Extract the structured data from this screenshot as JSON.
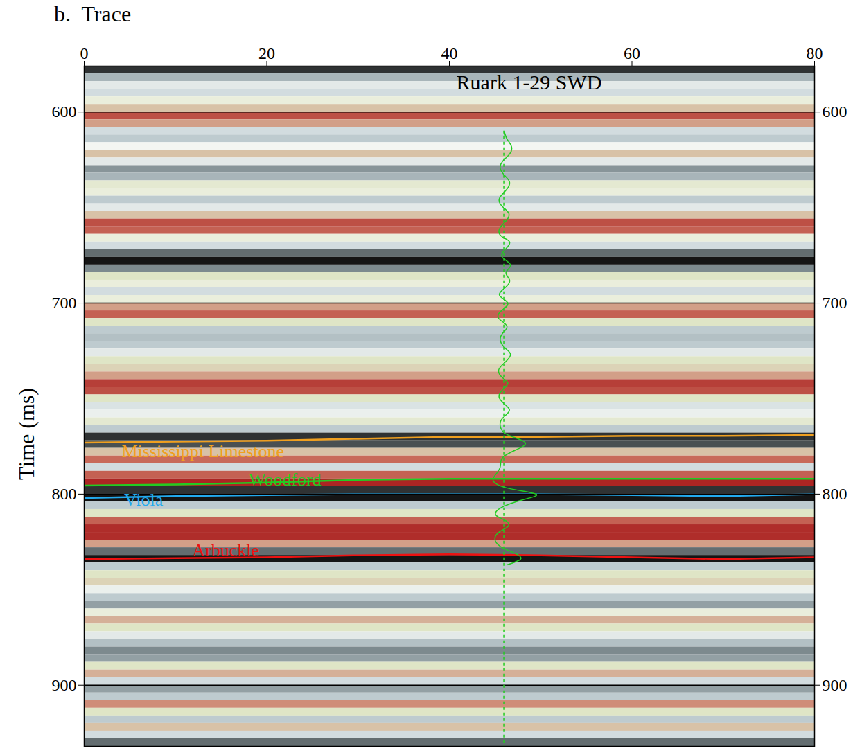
{
  "chart_data": {
    "type": "seismic_section",
    "panel": "b.",
    "xlabel": "Trace",
    "ylabel": "Time (ms)",
    "xlim": [
      0,
      80
    ],
    "xticks": [
      0,
      20,
      40,
      60,
      80
    ],
    "ylim": [
      576,
      932
    ],
    "yticks": [
      600,
      700,
      800,
      900
    ],
    "grid": true,
    "amplitude": {
      "zlim": [
        -1,
        1
      ],
      "bins": [
        576,
        580,
        584,
        588,
        592,
        596,
        600,
        604,
        608,
        612,
        616,
        620,
        624,
        628,
        632,
        636,
        640,
        644,
        648,
        652,
        656,
        660,
        664,
        668,
        672,
        676,
        680,
        684,
        688,
        692,
        696,
        700,
        704,
        708,
        712,
        716,
        720,
        724,
        728,
        732,
        736,
        740,
        744,
        748,
        752,
        756,
        760,
        764,
        768,
        772,
        776,
        780,
        784,
        788,
        792,
        796,
        800,
        804,
        808,
        812,
        816,
        820,
        824,
        828,
        832,
        836,
        840,
        844,
        848,
        852,
        856,
        860,
        864,
        868,
        872,
        876,
        880,
        884,
        888,
        892,
        896,
        900,
        904,
        908,
        912,
        916,
        920,
        924,
        928,
        932
      ],
      "values": [
        0.9,
        0.4,
        0.1,
        0.2,
        -0.1,
        -0.3,
        -0.7,
        -0.4,
        0.2,
        0.3,
        0.0,
        -0.3,
        0.1,
        0.55,
        0.4,
        -0.15,
        -0.1,
        0.3,
        0.1,
        -0.3,
        -0.7,
        -0.6,
        -0.1,
        0.2,
        0.7,
        1.0,
        0.6,
        -0.2,
        -0.1,
        0.2,
        -0.1,
        -0.4,
        -0.6,
        -0.2,
        0.3,
        0.35,
        0.3,
        0.1,
        -0.2,
        -0.25,
        -0.4,
        -0.8,
        -0.7,
        -0.2,
        0.15,
        0.05,
        -0.15,
        0.3,
        0.9,
        0.8,
        -0.3,
        -0.55,
        0.2,
        -0.6,
        -0.95,
        0.9,
        1.0,
        0.3,
        -0.2,
        -0.6,
        -0.9,
        -0.9,
        -0.4,
        0.7,
        1.0,
        0.3,
        -0.2,
        -0.25,
        0.05,
        0.3,
        0.5,
        -0.1,
        -0.35,
        -0.2,
        0.1,
        0.35,
        0.6,
        0.5,
        -0.2,
        -0.35,
        0.2,
        0.5,
        0.3,
        -0.45,
        -0.2,
        0.3,
        -0.3,
        0.2,
        0.7
      ]
    },
    "well": {
      "name": "Ruark 1-29 SWD",
      "color": "#22cc22",
      "trace": 46,
      "times": [
        610,
        614,
        618,
        622,
        626,
        630,
        634,
        637,
        641,
        645,
        649,
        653,
        657,
        661,
        665,
        668,
        672,
        676,
        680,
        684,
        688,
        692,
        696,
        700,
        704,
        708,
        712,
        716,
        720,
        724,
        727,
        731,
        735,
        739,
        742,
        746,
        750,
        754,
        757,
        761,
        765,
        769,
        773,
        777,
        781,
        785,
        789,
        793,
        797,
        800,
        803,
        807,
        811,
        814,
        817,
        820,
        824,
        828,
        831,
        834,
        837
      ],
      "values": [
        0,
        0.3,
        0.8,
        0.6,
        -0.2,
        -0.4,
        0.2,
        0.6,
        0.2,
        -0.5,
        -0.3,
        0.5,
        0.2,
        -0.5,
        -0.3,
        0.6,
        0.1,
        -0.2,
        0.7,
        0.2,
        0.6,
        0.1,
        -0.5,
        0.4,
        -0.3,
        -0.6,
        0.3,
        -0.2,
        -0.4,
        0.2,
        0.7,
        0.1,
        -0.6,
        -0.2,
        0.4,
        -0.3,
        -0.5,
        0.3,
        0.5,
        -0.3,
        -0.4,
        0.4,
        2.3,
        1.2,
        -0.2,
        -0.4,
        -0.8,
        -1.2,
        0.5,
        3.5,
        2.0,
        -0.3,
        -0.9,
        0.2,
        0.4,
        -0.6,
        -1.0,
        -0.2,
        1.2,
        1.8,
        0.3
      ]
    },
    "series": [
      {
        "name": "Mississippi Limestone",
        "color": "#f0a020",
        "x": [
          0,
          10,
          20,
          30,
          40,
          50,
          60,
          70,
          80
        ],
        "values": [
          773,
          772.5,
          772,
          771,
          770,
          770,
          769.5,
          769.5,
          769
        ]
      },
      {
        "name": "Woodford",
        "color": "#22cc22",
        "x": [
          0,
          10,
          20,
          30,
          40,
          50,
          60,
          70,
          80
        ],
        "values": [
          795.5,
          795,
          794,
          792.5,
          792,
          792,
          792,
          792,
          792
        ]
      },
      {
        "name": "Viola",
        "color": "#22aaee",
        "x": [
          0,
          10,
          20,
          30,
          40,
          50,
          60,
          70,
          80
        ],
        "values": [
          802,
          801,
          800.5,
          800,
          800,
          800,
          800.5,
          801,
          800
        ]
      },
      {
        "name": "Arbuckle",
        "color": "#ee1111",
        "x": [
          0,
          10,
          20,
          30,
          40,
          50,
          60,
          70,
          80
        ],
        "values": [
          834,
          833.5,
          833,
          832,
          831.5,
          832,
          833,
          834,
          833
        ]
      }
    ]
  }
}
